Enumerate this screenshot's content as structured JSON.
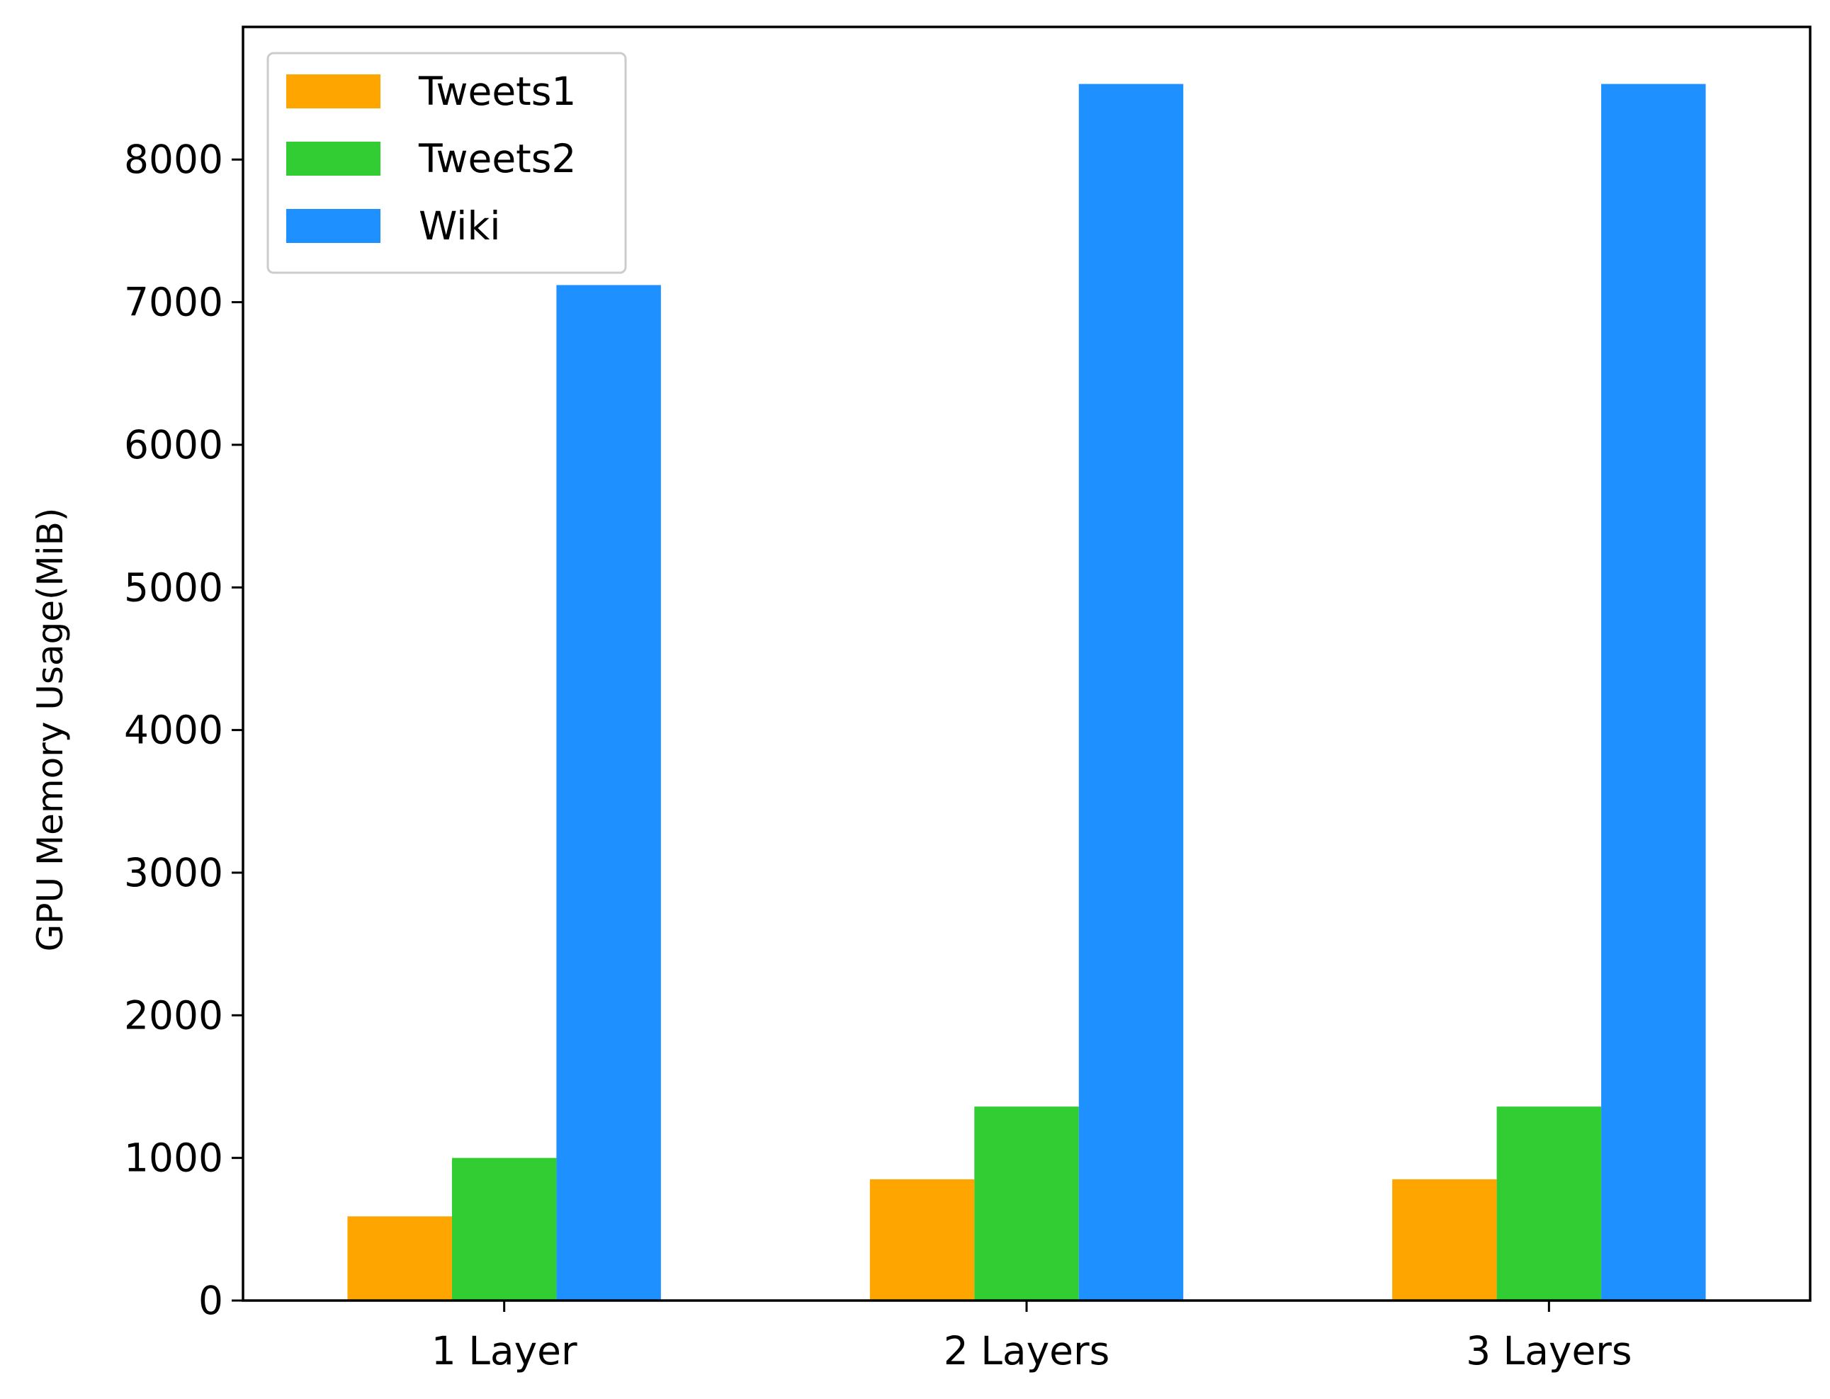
{
  "chart_data": {
    "type": "bar",
    "title": "",
    "xlabel": "",
    "ylabel": "GPU Memory Usage(MiB)",
    "categories": [
      "1 Layer",
      "2 Layers",
      "3 Layers"
    ],
    "series": [
      {
        "name": "Tweets1",
        "color": "#FFA500",
        "values": [
          590,
          850,
          850
        ]
      },
      {
        "name": "Tweets2",
        "color": "#32CD32",
        "values": [
          1000,
          1360,
          1360
        ]
      },
      {
        "name": "Wiki",
        "color": "#1E90FF",
        "values": [
          7120,
          8530,
          8530
        ]
      }
    ],
    "ylim": [
      0,
      8930
    ],
    "yticks": [
      0,
      1000,
      2000,
      3000,
      4000,
      5000,
      6000,
      7000,
      8000
    ],
    "grid": false,
    "legend_position": "top-left"
  }
}
